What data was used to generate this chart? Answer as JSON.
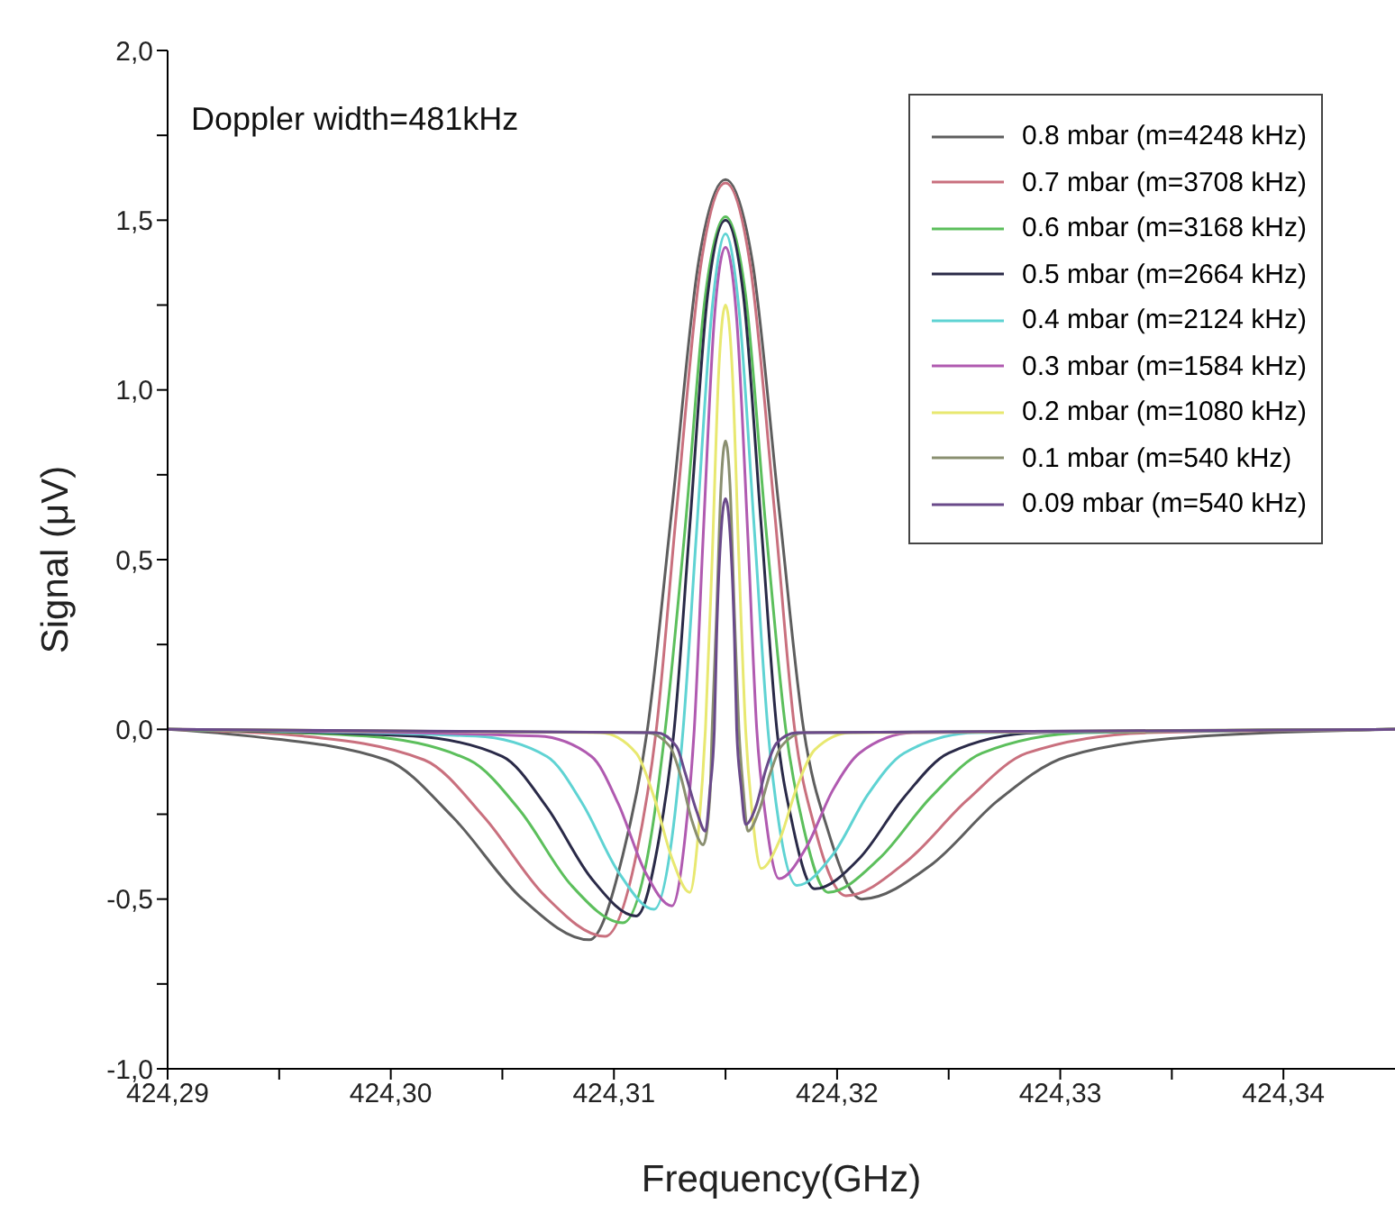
{
  "chart_data": {
    "type": "line",
    "xlabel": "Frequency(GHz)",
    "ylabel": "Signal (μV)",
    "annotations": [
      "Doppler width=481kHz"
    ],
    "xlim": [
      424.29,
      424.345
    ],
    "xticks": [
      {
        "value": 424.29,
        "label": "424,29"
      },
      {
        "value": 424.295,
        "label": null
      },
      {
        "value": 424.3,
        "label": "424,30"
      },
      {
        "value": 424.305,
        "label": null
      },
      {
        "value": 424.31,
        "label": "424,31"
      },
      {
        "value": 424.315,
        "label": null
      },
      {
        "value": 424.32,
        "label": "424,32"
      },
      {
        "value": 424.325,
        "label": null
      },
      {
        "value": 424.33,
        "label": "424,33"
      },
      {
        "value": 424.335,
        "label": null
      },
      {
        "value": 424.34,
        "label": "424,34"
      }
    ],
    "ylim": [
      -1,
      2
    ],
    "yticks": [
      {
        "value": -1,
        "label": "-1,0"
      },
      {
        "value": -0.75,
        "label": null
      },
      {
        "value": -0.5,
        "label": "-0,5"
      },
      {
        "value": -0.25,
        "label": null
      },
      {
        "value": 0,
        "label": "0,0"
      },
      {
        "value": 0.25,
        "label": null
      },
      {
        "value": 0.5,
        "label": "0,5"
      },
      {
        "value": 0.75,
        "label": null
      },
      {
        "value": 1,
        "label": "1,0"
      },
      {
        "value": 1.25,
        "label": null
      },
      {
        "value": 1.5,
        "label": "1,5"
      },
      {
        "value": 1.75,
        "label": null
      },
      {
        "value": 2,
        "label": "2,0"
      }
    ],
    "grid": false,
    "legend": "top right",
    "series": [
      {
        "name": "0.8 mbar (m=4248 kHz)",
        "color": "#5e5e5e",
        "x": [
          424.29,
          424.2937,
          424.2998,
          424.3028,
          424.3059,
          424.3089,
          424.3104,
          424.3115,
          424.3126,
          424.3138,
          424.315,
          424.3162,
          424.3174,
          424.3185,
          424.3196,
          424.3211,
          424.3242,
          424.3272,
          424.3303,
          424.3364,
          424.345
        ],
        "values": [
          0,
          -0.02,
          -0.09,
          -0.26,
          -0.5,
          -0.62,
          -0.37,
          0,
          0.65,
          1.38,
          1.62,
          1.38,
          0.65,
          0,
          -0.3,
          -0.5,
          -0.4,
          -0.21,
          -0.08,
          -0.02,
          0
        ]
      },
      {
        "name": "0.7 mbar (m=3708 kHz)",
        "color": "#c9707e",
        "x": [
          424.29,
          424.2961,
          424.3015,
          424.3042,
          424.3069,
          424.3096,
          424.311,
          424.3119,
          424.3128,
          424.3139,
          424.315,
          424.3161,
          424.3172,
          424.3181,
          424.319,
          424.3204,
          424.3231,
          424.3258,
          424.3285,
          424.3339,
          424.345
        ],
        "values": [
          0,
          -0.02,
          -0.09,
          -0.26,
          -0.49,
          -0.61,
          -0.37,
          0,
          0.64,
          1.37,
          1.61,
          1.37,
          0.64,
          0,
          -0.29,
          -0.49,
          -0.39,
          -0.21,
          -0.07,
          -0.01,
          0
        ]
      },
      {
        "name": "0.6 mbar (m=3168 kHz)",
        "color": "#5cbf5c",
        "x": [
          424.29,
          424.2989,
          424.3035,
          424.3058,
          424.3081,
          424.3104,
          424.3116,
          424.3123,
          424.3132,
          424.3141,
          424.315,
          424.3159,
          424.3168,
          424.3177,
          424.3185,
          424.3196,
          424.3219,
          424.3242,
          424.3265,
          424.3311,
          424.345
        ],
        "values": [
          0,
          -0.02,
          -0.09,
          -0.24,
          -0.46,
          -0.57,
          -0.34,
          0,
          0.6,
          1.28,
          1.51,
          1.28,
          0.6,
          0,
          -0.29,
          -0.48,
          -0.38,
          -0.2,
          -0.07,
          -0.01,
          0
        ]
      },
      {
        "name": "0.5 mbar (m=2664 kHz)",
        "color": "#2a2a48",
        "x": [
          424.29,
          424.301,
          424.305,
          424.307,
          424.309,
          424.311,
          424.312,
          424.3127,
          424.3134,
          424.3142,
          424.315,
          424.3158,
          424.3166,
          424.3173,
          424.318,
          424.319,
          424.321,
          424.323,
          424.325,
          424.329,
          424.345
        ],
        "values": [
          0,
          -0.02,
          -0.08,
          -0.23,
          -0.44,
          -0.55,
          -0.33,
          0,
          0.6,
          1.28,
          1.5,
          1.28,
          0.6,
          0,
          -0.28,
          -0.47,
          -0.38,
          -0.2,
          -0.07,
          -0.01,
          0
        ]
      },
      {
        "name": "0.4 mbar (m=2124 kHz)",
        "color": "#5fd3d3",
        "x": [
          424.29,
          424.3038,
          424.307,
          424.3086,
          424.3102,
          424.3118,
          424.3126,
          424.3131,
          424.3137,
          424.3144,
          424.315,
          424.3156,
          424.3163,
          424.3169,
          424.3174,
          424.3182,
          424.3198,
          424.3214,
          424.323,
          424.3262,
          424.345
        ],
        "values": [
          0,
          -0.02,
          -0.08,
          -0.22,
          -0.42,
          -0.53,
          -0.32,
          0,
          0.58,
          1.24,
          1.46,
          1.24,
          0.58,
          0,
          -0.28,
          -0.46,
          -0.37,
          -0.19,
          -0.07,
          -0.01,
          0
        ]
      },
      {
        "name": "0.3 mbar (m=1584 kHz)",
        "color": "#b05ab0",
        "x": [
          424.29,
          424.3066,
          424.309,
          424.3102,
          424.3114,
          424.3126,
          424.3132,
          424.3136,
          424.314,
          424.3145,
          424.315,
          424.3155,
          424.316,
          424.3164,
          424.3168,
          424.3174,
          424.3186,
          424.3198,
          424.321,
          424.3234,
          424.345
        ],
        "values": [
          0,
          -0.02,
          -0.08,
          -0.22,
          -0.42,
          -0.52,
          -0.31,
          0,
          0.57,
          1.21,
          1.42,
          1.21,
          0.57,
          0,
          -0.26,
          -0.44,
          -0.35,
          -0.18,
          -0.07,
          -0.01,
          0
        ]
      },
      {
        "name": "0.2 mbar (m=1080 kHz)",
        "color": "#e8e870",
        "x": [
          424.29,
          424.3094,
          424.311,
          424.3118,
          424.3126,
          424.3134,
          424.3138,
          424.3141,
          424.3144,
          424.3147,
          424.315,
          424.3153,
          424.3156,
          424.3159,
          424.3162,
          424.3166,
          424.3174,
          424.3182,
          424.319,
          424.3206,
          424.345
        ],
        "values": [
          0,
          -0.01,
          -0.07,
          -0.2,
          -0.38,
          -0.48,
          -0.29,
          0,
          0.5,
          1.06,
          1.25,
          1.06,
          0.5,
          0,
          -0.25,
          -0.41,
          -0.33,
          -0.17,
          -0.06,
          -0.01,
          0
        ]
      },
      {
        "name": "0.1 mbar (m=540 kHz)",
        "color": "#8a8f70",
        "x": [
          424.29,
          424.3115,
          424.3125,
          424.313,
          424.3135,
          424.314,
          424.3143,
          424.3144,
          424.3146,
          424.3148,
          424.315,
          424.3152,
          424.3154,
          424.3156,
          424.3158,
          424.316,
          424.3165,
          424.317,
          424.3175,
          424.3185,
          424.345
        ],
        "values": [
          0,
          -0.01,
          -0.05,
          -0.14,
          -0.27,
          -0.34,
          -0.2,
          0,
          0.34,
          0.72,
          0.85,
          0.72,
          0.34,
          0,
          -0.18,
          -0.3,
          -0.24,
          -0.13,
          -0.05,
          -0.01,
          0
        ]
      },
      {
        "name": "0.09 mbar (m=540 kHz)",
        "color": "#6a4a8a",
        "x": [
          424.29,
          424.3119,
          424.3128,
          424.3132,
          424.3137,
          424.3141,
          424.3143,
          424.3145,
          424.3146,
          424.3148,
          424.315,
          424.3152,
          424.3154,
          424.3155,
          424.3157,
          424.3159,
          424.3164,
          424.3168,
          424.3173,
          424.3182,
          424.345
        ],
        "values": [
          0,
          -0.01,
          -0.05,
          -0.13,
          -0.24,
          -0.3,
          -0.18,
          0,
          0.27,
          0.58,
          0.68,
          0.58,
          0.27,
          0,
          -0.17,
          -0.28,
          -0.22,
          -0.12,
          -0.04,
          -0.01,
          0
        ]
      }
    ]
  }
}
